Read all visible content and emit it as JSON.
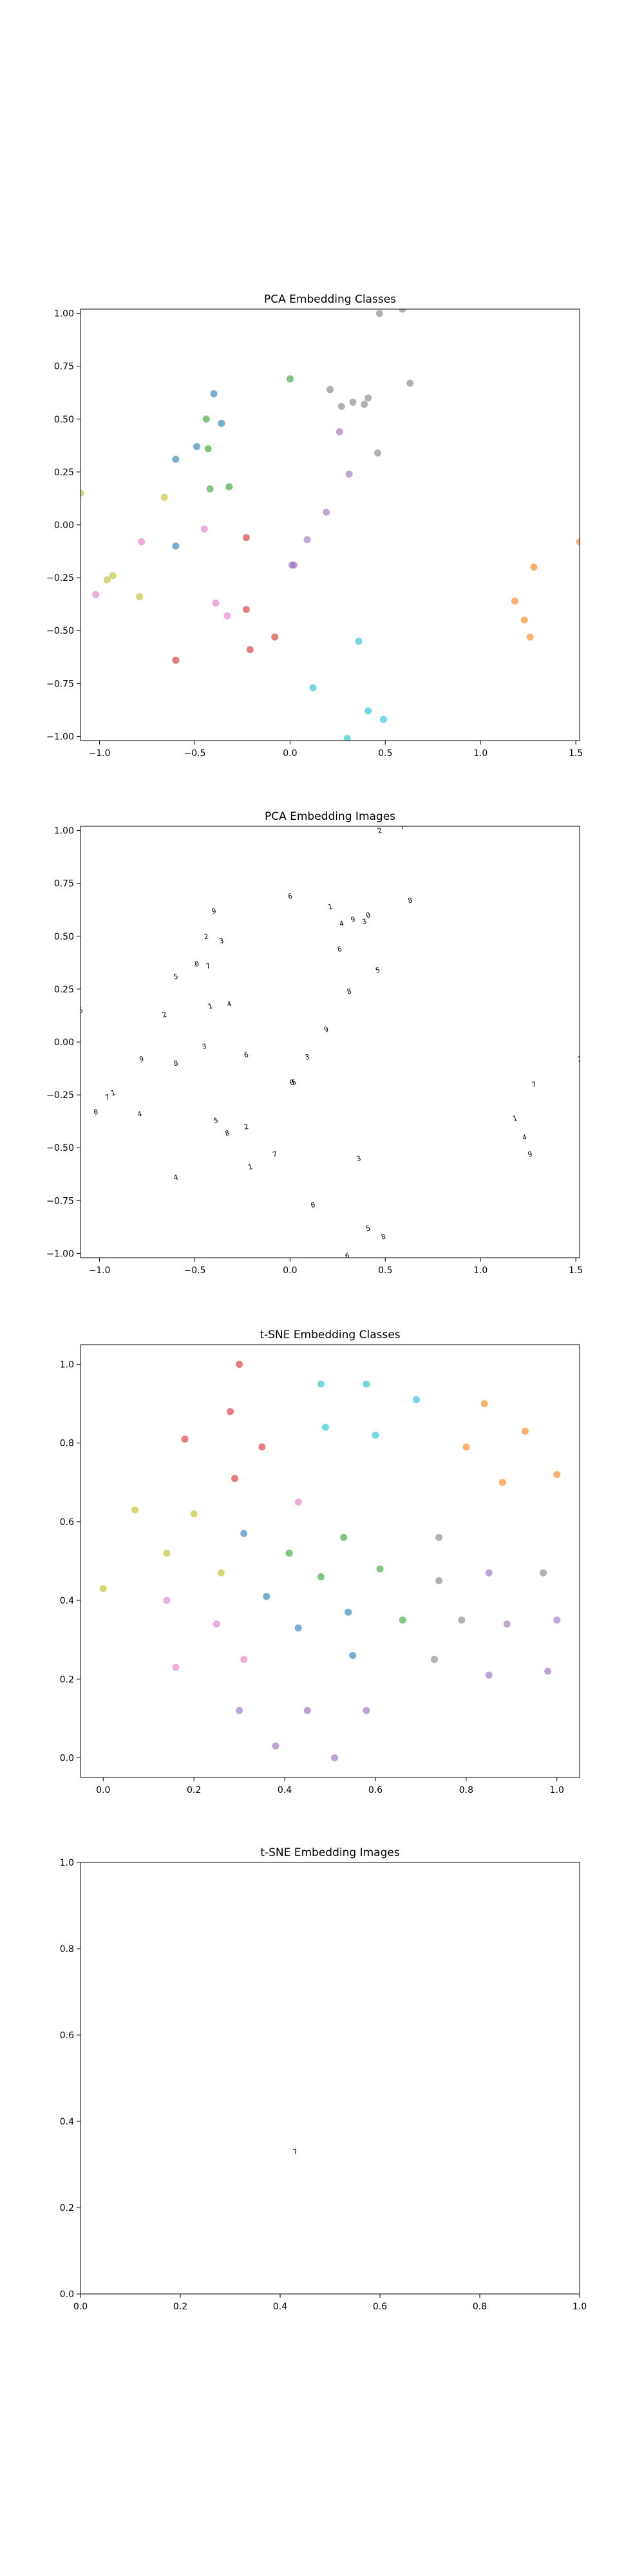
{
  "palette": {
    "blue": "#1f77b4",
    "orange": "#ff7f0e",
    "green": "#2ca02c",
    "red": "#d62728",
    "purple": "#9467bd",
    "brown": "#8c564b",
    "pink": "#e377c2",
    "gray": "#7f7f7f",
    "olive": "#bcbd22",
    "cyan": "#17becf"
  },
  "chart_data": [
    {
      "id": "pca-classes",
      "type": "scatter",
      "title": "PCA Embedding Classes",
      "xlim": [
        -1.1,
        1.52
      ],
      "ylim": [
        -1.02,
        1.02
      ],
      "xticks": [
        -1.0,
        -0.5,
        0.0,
        0.5,
        1.0,
        1.5
      ],
      "xtick_labels": [
        "−1.0",
        "−0.5",
        "0.0",
        "0.5",
        "1.0",
        "1.5"
      ],
      "yticks": [
        -1.0,
        -0.75,
        -0.5,
        -0.25,
        0.0,
        0.25,
        0.5,
        0.75,
        1.0
      ],
      "ytick_labels": [
        "−1.00",
        "−0.75",
        "−0.50",
        "−0.25",
        "0.00",
        "0.25",
        "0.50",
        "0.75",
        "1.00"
      ],
      "grid": false,
      "marker": "circle",
      "points": [
        {
          "x": 0.47,
          "y": 1.0,
          "c": "gray"
        },
        {
          "x": 0.59,
          "y": 1.02,
          "c": "gray"
        },
        {
          "x": 0.21,
          "y": 0.64,
          "c": "gray"
        },
        {
          "x": 0.27,
          "y": 0.56,
          "c": "gray"
        },
        {
          "x": 0.33,
          "y": 0.58,
          "c": "gray"
        },
        {
          "x": 0.39,
          "y": 0.57,
          "c": "gray"
        },
        {
          "x": 0.41,
          "y": 0.6,
          "c": "gray"
        },
        {
          "x": 0.46,
          "y": 0.34,
          "c": "gray"
        },
        {
          "x": 0.63,
          "y": 0.67,
          "c": "gray"
        },
        {
          "x": 0.0,
          "y": 0.69,
          "c": "green"
        },
        {
          "x": -0.44,
          "y": 0.5,
          "c": "green"
        },
        {
          "x": -0.43,
          "y": 0.36,
          "c": "green"
        },
        {
          "x": -0.42,
          "y": 0.17,
          "c": "green"
        },
        {
          "x": -0.32,
          "y": 0.18,
          "c": "green"
        },
        {
          "x": -0.4,
          "y": 0.62,
          "c": "blue"
        },
        {
          "x": -0.36,
          "y": 0.48,
          "c": "blue"
        },
        {
          "x": -0.49,
          "y": 0.37,
          "c": "blue"
        },
        {
          "x": -0.6,
          "y": 0.31,
          "c": "blue"
        },
        {
          "x": -0.6,
          "y": -0.1,
          "c": "blue"
        },
        {
          "x": -1.1,
          "y": 0.15,
          "c": "olive"
        },
        {
          "x": -0.66,
          "y": 0.13,
          "c": "olive"
        },
        {
          "x": -0.96,
          "y": -0.26,
          "c": "olive"
        },
        {
          "x": -0.93,
          "y": -0.24,
          "c": "olive"
        },
        {
          "x": -0.79,
          "y": -0.34,
          "c": "olive"
        },
        {
          "x": -0.78,
          "y": -0.08,
          "c": "pink"
        },
        {
          "x": -0.45,
          "y": -0.02,
          "c": "pink"
        },
        {
          "x": -1.02,
          "y": -0.33,
          "c": "pink"
        },
        {
          "x": -0.39,
          "y": -0.37,
          "c": "pink"
        },
        {
          "x": -0.33,
          "y": -0.43,
          "c": "pink"
        },
        {
          "x": -0.23,
          "y": -0.06,
          "c": "red"
        },
        {
          "x": -0.23,
          "y": -0.4,
          "c": "red"
        },
        {
          "x": -0.08,
          "y": -0.53,
          "c": "red"
        },
        {
          "x": -0.21,
          "y": -0.59,
          "c": "red"
        },
        {
          "x": -0.6,
          "y": -0.64,
          "c": "red"
        },
        {
          "x": 0.19,
          "y": 0.06,
          "c": "purple"
        },
        {
          "x": 0.09,
          "y": -0.07,
          "c": "purple"
        },
        {
          "x": 0.01,
          "y": -0.19,
          "c": "purple"
        },
        {
          "x": 0.02,
          "y": -0.19,
          "c": "purple"
        },
        {
          "x": 0.31,
          "y": 0.24,
          "c": "purple"
        },
        {
          "x": 0.26,
          "y": 0.44,
          "c": "purple"
        },
        {
          "x": 1.52,
          "y": -0.08,
          "c": "orange"
        },
        {
          "x": 1.28,
          "y": -0.2,
          "c": "orange"
        },
        {
          "x": 1.18,
          "y": -0.36,
          "c": "orange"
        },
        {
          "x": 1.23,
          "y": -0.45,
          "c": "orange"
        },
        {
          "x": 1.26,
          "y": -0.53,
          "c": "orange"
        },
        {
          "x": 0.36,
          "y": -0.55,
          "c": "cyan"
        },
        {
          "x": 0.12,
          "y": -0.77,
          "c": "cyan"
        },
        {
          "x": 0.41,
          "y": -0.88,
          "c": "cyan"
        },
        {
          "x": 0.49,
          "y": -0.92,
          "c": "cyan"
        },
        {
          "x": 0.3,
          "y": -1.01,
          "c": "cyan"
        }
      ]
    },
    {
      "id": "pca-images",
      "type": "scatter",
      "title": "PCA Embedding Images",
      "xlim": [
        -1.1,
        1.52
      ],
      "ylim": [
        -1.02,
        1.02
      ],
      "xticks": [
        -1.0,
        -0.5,
        0.0,
        0.5,
        1.0,
        1.5
      ],
      "xtick_labels": [
        "−1.0",
        "−0.5",
        "0.0",
        "0.5",
        "1.0",
        "1.5"
      ],
      "yticks": [
        -1.0,
        -0.75,
        -0.5,
        -0.25,
        0.0,
        0.25,
        0.5,
        0.75,
        1.0
      ],
      "ytick_labels": [
        "−1.00",
        "−0.75",
        "−0.50",
        "−0.25",
        "0.00",
        "0.25",
        "0.50",
        "0.75",
        "1.00"
      ],
      "grid": false,
      "marker": "digit-image",
      "glyphs": [
        "2",
        "7",
        "1",
        "4",
        "9",
        "3",
        "0",
        "5",
        "8",
        "6"
      ],
      "points_from": "pca-classes"
    },
    {
      "id": "tsne-classes",
      "type": "scatter",
      "title": "t-SNE Embedding Classes",
      "xlim": [
        -0.05,
        1.05
      ],
      "ylim": [
        -0.05,
        1.05
      ],
      "xticks": [
        0.0,
        0.2,
        0.4,
        0.6,
        0.8,
        1.0
      ],
      "xtick_labels": [
        "0.0",
        "0.2",
        "0.4",
        "0.6",
        "0.8",
        "1.0"
      ],
      "yticks": [
        0.0,
        0.2,
        0.4,
        0.6,
        0.8,
        1.0
      ],
      "ytick_labels": [
        "0.0",
        "0.2",
        "0.4",
        "0.6",
        "0.8",
        "1.0"
      ],
      "grid": false,
      "marker": "circle",
      "points": [
        {
          "x": 0.3,
          "y": 1.0,
          "c": "red"
        },
        {
          "x": 0.28,
          "y": 0.88,
          "c": "red"
        },
        {
          "x": 0.18,
          "y": 0.81,
          "c": "red"
        },
        {
          "x": 0.35,
          "y": 0.79,
          "c": "red"
        },
        {
          "x": 0.29,
          "y": 0.71,
          "c": "red"
        },
        {
          "x": 0.48,
          "y": 0.95,
          "c": "cyan"
        },
        {
          "x": 0.58,
          "y": 0.95,
          "c": "cyan"
        },
        {
          "x": 0.49,
          "y": 0.84,
          "c": "cyan"
        },
        {
          "x": 0.6,
          "y": 0.82,
          "c": "cyan"
        },
        {
          "x": 0.69,
          "y": 0.91,
          "c": "cyan"
        },
        {
          "x": 0.84,
          "y": 0.9,
          "c": "orange"
        },
        {
          "x": 0.93,
          "y": 0.83,
          "c": "orange"
        },
        {
          "x": 0.8,
          "y": 0.79,
          "c": "orange"
        },
        {
          "x": 0.88,
          "y": 0.7,
          "c": "orange"
        },
        {
          "x": 1.0,
          "y": 0.72,
          "c": "orange"
        },
        {
          "x": 0.07,
          "y": 0.63,
          "c": "olive"
        },
        {
          "x": 0.2,
          "y": 0.62,
          "c": "olive"
        },
        {
          "x": 0.14,
          "y": 0.52,
          "c": "olive"
        },
        {
          "x": 0.26,
          "y": 0.47,
          "c": "olive"
        },
        {
          "x": 0.0,
          "y": 0.43,
          "c": "olive"
        },
        {
          "x": 0.43,
          "y": 0.65,
          "c": "pink"
        },
        {
          "x": 0.14,
          "y": 0.4,
          "c": "pink"
        },
        {
          "x": 0.25,
          "y": 0.34,
          "c": "pink"
        },
        {
          "x": 0.16,
          "y": 0.23,
          "c": "pink"
        },
        {
          "x": 0.31,
          "y": 0.25,
          "c": "pink"
        },
        {
          "x": 0.31,
          "y": 0.57,
          "c": "blue"
        },
        {
          "x": 0.36,
          "y": 0.41,
          "c": "blue"
        },
        {
          "x": 0.43,
          "y": 0.33,
          "c": "blue"
        },
        {
          "x": 0.54,
          "y": 0.37,
          "c": "blue"
        },
        {
          "x": 0.55,
          "y": 0.26,
          "c": "blue"
        },
        {
          "x": 0.41,
          "y": 0.52,
          "c": "green"
        },
        {
          "x": 0.53,
          "y": 0.56,
          "c": "green"
        },
        {
          "x": 0.48,
          "y": 0.46,
          "c": "green"
        },
        {
          "x": 0.61,
          "y": 0.48,
          "c": "green"
        },
        {
          "x": 0.66,
          "y": 0.35,
          "c": "green"
        },
        {
          "x": 0.74,
          "y": 0.56,
          "c": "gray"
        },
        {
          "x": 0.74,
          "y": 0.45,
          "c": "gray"
        },
        {
          "x": 0.79,
          "y": 0.35,
          "c": "gray"
        },
        {
          "x": 0.73,
          "y": 0.25,
          "c": "gray"
        },
        {
          "x": 0.97,
          "y": 0.47,
          "c": "gray"
        },
        {
          "x": 0.85,
          "y": 0.47,
          "c": "purple"
        },
        {
          "x": 0.89,
          "y": 0.34,
          "c": "purple"
        },
        {
          "x": 0.85,
          "y": 0.21,
          "c": "purple"
        },
        {
          "x": 0.98,
          "y": 0.22,
          "c": "purple"
        },
        {
          "x": 1.0,
          "y": 0.35,
          "c": "purple"
        },
        {
          "x": 0.3,
          "y": 0.12,
          "c": "purple"
        },
        {
          "x": 0.38,
          "y": 0.03,
          "c": "purple"
        },
        {
          "x": 0.45,
          "y": 0.12,
          "c": "purple"
        },
        {
          "x": 0.51,
          "y": 0.0,
          "c": "purple"
        },
        {
          "x": 0.58,
          "y": 0.12,
          "c": "purple"
        }
      ]
    },
    {
      "id": "tsne-images",
      "type": "scatter",
      "title": "t-SNE Embedding Images",
      "xlim": [
        0.0,
        1.0
      ],
      "ylim": [
        0.0,
        1.0
      ],
      "xticks": [
        0.0,
        0.2,
        0.4,
        0.6,
        0.8,
        1.0
      ],
      "xtick_labels": [
        "0.0",
        "0.2",
        "0.4",
        "0.6",
        "0.8",
        "1.0"
      ],
      "yticks": [
        0.0,
        0.2,
        0.4,
        0.6,
        0.8,
        1.0
      ],
      "ytick_labels": [
        "0.0",
        "0.2",
        "0.4",
        "0.6",
        "0.8",
        "1.0"
      ],
      "grid": false,
      "marker": "digit-image",
      "glyphs": [
        "7"
      ],
      "points": [
        {
          "x": 0.43,
          "y": 0.33,
          "c": "black"
        }
      ]
    }
  ]
}
